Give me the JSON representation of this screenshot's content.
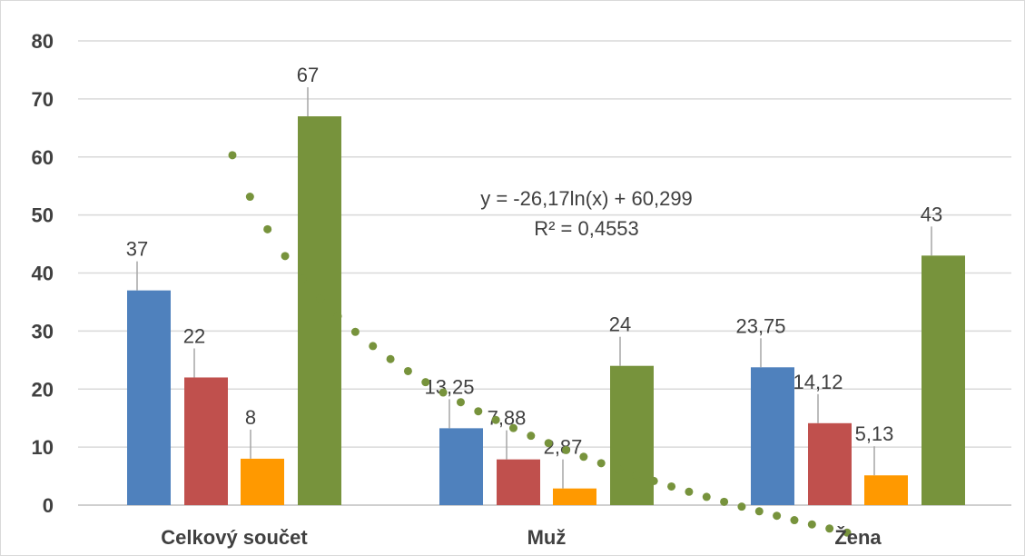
{
  "chart_data": {
    "type": "bar",
    "categories": [
      "Celkový součet",
      "Muž",
      "Žena"
    ],
    "series": [
      {
        "values": [
          37,
          13.25,
          23.75
        ],
        "labels": [
          "37",
          "13,25",
          "23,75"
        ],
        "color": "#4f81bd"
      },
      {
        "values": [
          22,
          7.88,
          14.12
        ],
        "labels": [
          "22",
          "7,88",
          "14,12"
        ],
        "color": "#c0504d"
      },
      {
        "values": [
          8,
          2.87,
          5.13
        ],
        "labels": [
          "8",
          "2,87",
          "5,13"
        ],
        "color": "#ff9900"
      },
      {
        "values": [
          67,
          24,
          43
        ],
        "labels": [
          "67",
          "24",
          "43"
        ],
        "color": "#77933c"
      }
    ],
    "ylim": [
      0,
      80
    ],
    "yticks": [
      0,
      10,
      20,
      30,
      40,
      50,
      60,
      70,
      80
    ],
    "grid": true,
    "legend": "none",
    "trendline": {
      "type": "logarithmic",
      "a": -26.17,
      "b": 60.299,
      "equation": "y = -26,17ln(x) + 60,299",
      "r_squared": "R² = 0,4553",
      "color": "#77933c",
      "style": "dotted"
    }
  }
}
